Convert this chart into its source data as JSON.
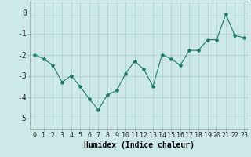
{
  "x": [
    0,
    1,
    2,
    3,
    4,
    5,
    6,
    7,
    8,
    9,
    10,
    11,
    12,
    13,
    14,
    15,
    16,
    17,
    18,
    19,
    20,
    21,
    22,
    23
  ],
  "y": [
    -2.0,
    -2.2,
    -2.5,
    -3.3,
    -3.0,
    -3.5,
    -4.1,
    -4.6,
    -3.9,
    -3.7,
    -2.9,
    -2.3,
    -2.7,
    -3.5,
    -2.0,
    -2.2,
    -2.5,
    -1.8,
    -1.8,
    -1.3,
    -1.3,
    -0.1,
    -1.1,
    -1.2
  ],
  "xlabel": "Humidex (Indice chaleur)",
  "line_color": "#1a7a6a",
  "marker": "*",
  "marker_size": 3,
  "bg_color": "#cce8e8",
  "grid_color": "#aacccc",
  "ylim": [
    -5.5,
    0.5
  ],
  "xlim": [
    -0.5,
    23.5
  ],
  "yticks": [
    0,
    -1,
    -2,
    -3,
    -4,
    -5
  ],
  "xticks": [
    0,
    1,
    2,
    3,
    4,
    5,
    6,
    7,
    8,
    9,
    10,
    11,
    12,
    13,
    14,
    15,
    16,
    17,
    18,
    19,
    20,
    21,
    22,
    23
  ],
  "tick_fontsize": 6,
  "xlabel_fontsize": 7
}
